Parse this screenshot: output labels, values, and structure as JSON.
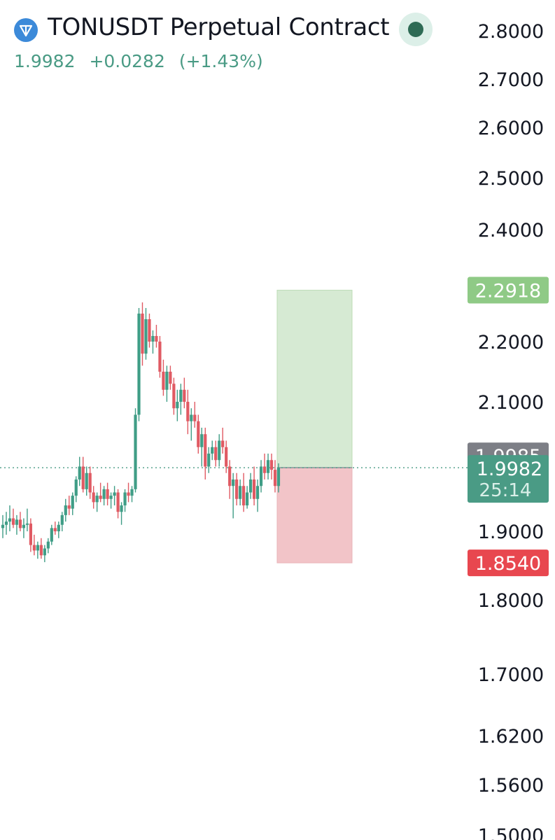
{
  "header": {
    "symbol_title": "TONUSDT Perpetual Contract",
    "last_price": "1.9982",
    "change": "+0.0282",
    "change_pct": "(+1.43%)",
    "logo_icon": "ton-diamond-logo",
    "status_icon": "market-open-dot"
  },
  "colors": {
    "up": "#26a69a",
    "down": "#ef5350",
    "up_wick": "#3f9d86",
    "down_wick": "#e05a63",
    "profit_zone": "#d6ead3",
    "loss_zone": "#f2c4c8",
    "target_badge": "#8fca86",
    "stop_badge": "#e8474f",
    "last_badge": "#4a9b85",
    "prev_badge": "#7d7f86"
  },
  "chart_data": {
    "type": "candlestick",
    "y_ticks": [
      "2.8000",
      "2.7000",
      "2.6000",
      "2.5000",
      "2.4000",
      "2.2000",
      "2.1000",
      "1.9000",
      "1.8000",
      "1.7000",
      "1.6200",
      "1.5600",
      "1.5000"
    ],
    "y_tick_values": [
      2.8,
      2.7,
      2.6,
      2.5,
      2.4,
      2.2,
      2.1,
      1.9,
      1.8,
      1.7,
      1.62,
      1.56,
      1.5
    ],
    "position": {
      "entry": 1.9982,
      "target": 2.2918,
      "stop": 1.854,
      "target_label": "2.2918",
      "stop_label": "1.8540"
    },
    "price_labels": {
      "previous": "1.9985",
      "last": "1.9982",
      "countdown": "25:14"
    },
    "candles": [
      [
        1.905,
        1.925,
        1.89,
        1.91
      ],
      [
        1.91,
        1.93,
        1.895,
        1.915
      ],
      [
        1.915,
        1.94,
        1.9,
        1.92
      ],
      [
        1.92,
        1.935,
        1.905,
        1.91
      ],
      [
        1.91,
        1.925,
        1.895,
        1.918
      ],
      [
        1.918,
        1.93,
        1.9,
        1.905
      ],
      [
        1.905,
        1.92,
        1.89,
        1.91
      ],
      [
        1.91,
        1.935,
        1.9,
        1.912
      ],
      [
        1.912,
        1.92,
        1.87,
        1.88
      ],
      [
        1.88,
        1.895,
        1.865,
        1.872
      ],
      [
        1.872,
        1.885,
        1.86,
        1.88
      ],
      [
        1.88,
        1.89,
        1.86,
        1.865
      ],
      [
        1.865,
        1.88,
        1.855,
        1.875
      ],
      [
        1.875,
        1.89,
        1.868,
        1.885
      ],
      [
        1.885,
        1.91,
        1.88,
        1.905
      ],
      [
        1.905,
        1.915,
        1.895,
        1.9
      ],
      [
        1.9,
        1.915,
        1.89,
        1.91
      ],
      [
        1.91,
        1.93,
        1.9,
        1.925
      ],
      [
        1.925,
        1.95,
        1.915,
        1.94
      ],
      [
        1.94,
        1.955,
        1.925,
        1.935
      ],
      [
        1.935,
        1.96,
        1.925,
        1.955
      ],
      [
        1.955,
        1.985,
        1.945,
        1.98
      ],
      [
        1.98,
        2.015,
        1.97,
        2.0
      ],
      [
        2.0,
        2.015,
        1.96,
        1.965
      ],
      [
        1.965,
        2.0,
        1.955,
        1.99
      ],
      [
        1.99,
        2.0,
        1.95,
        1.96
      ],
      [
        1.96,
        1.97,
        1.935,
        1.945
      ],
      [
        1.945,
        1.96,
        1.93,
        1.955
      ],
      [
        1.955,
        1.975,
        1.945,
        1.95
      ],
      [
        1.95,
        1.97,
        1.94,
        1.965
      ],
      [
        1.965,
        1.975,
        1.94,
        1.95
      ],
      [
        1.95,
        1.96,
        1.935,
        1.955
      ],
      [
        1.955,
        1.97,
        1.94,
        1.96
      ],
      [
        1.96,
        1.965,
        1.92,
        1.93
      ],
      [
        1.93,
        1.945,
        1.91,
        1.94
      ],
      [
        1.94,
        1.965,
        1.93,
        1.96
      ],
      [
        1.96,
        1.975,
        1.945,
        1.955
      ],
      [
        1.955,
        1.97,
        1.945,
        1.965
      ],
      [
        1.965,
        2.09,
        1.96,
        2.08
      ],
      [
        2.08,
        2.26,
        2.07,
        2.25
      ],
      [
        2.25,
        2.27,
        2.16,
        2.18
      ],
      [
        2.18,
        2.26,
        2.17,
        2.24
      ],
      [
        2.24,
        2.25,
        2.19,
        2.2
      ],
      [
        2.2,
        2.22,
        2.18,
        2.21
      ],
      [
        2.21,
        2.23,
        2.19,
        2.2
      ],
      [
        2.2,
        2.21,
        2.14,
        2.15
      ],
      [
        2.15,
        2.17,
        2.11,
        2.12
      ],
      [
        2.12,
        2.16,
        2.1,
        2.15
      ],
      [
        2.15,
        2.16,
        2.12,
        2.13
      ],
      [
        2.13,
        2.14,
        2.08,
        2.09
      ],
      [
        2.09,
        2.12,
        2.07,
        2.1
      ],
      [
        2.1,
        2.13,
        2.08,
        2.12
      ],
      [
        2.12,
        2.14,
        2.09,
        2.1
      ],
      [
        2.1,
        2.12,
        2.05,
        2.07
      ],
      [
        2.07,
        2.09,
        2.04,
        2.08
      ],
      [
        2.08,
        2.1,
        2.06,
        2.07
      ],
      [
        2.07,
        2.08,
        2.02,
        2.03
      ],
      [
        2.03,
        2.06,
        2.0,
        2.05
      ],
      [
        2.05,
        2.06,
        1.98,
        2.0
      ],
      [
        2.0,
        2.03,
        1.99,
        2.02
      ],
      [
        2.02,
        2.04,
        2.01,
        2.03
      ],
      [
        2.03,
        2.04,
        2.0,
        2.01
      ],
      [
        2.01,
        2.05,
        2.0,
        2.04
      ],
      [
        2.04,
        2.06,
        2.02,
        2.03
      ],
      [
        2.03,
        2.04,
        1.99,
        2.0
      ],
      [
        2.0,
        2.01,
        1.95,
        1.97
      ],
      [
        1.97,
        1.99,
        1.92,
        1.98
      ],
      [
        1.98,
        1.99,
        1.94,
        1.95
      ],
      [
        1.95,
        1.98,
        1.94,
        1.97
      ],
      [
        1.97,
        1.99,
        1.93,
        1.94
      ],
      [
        1.94,
        1.97,
        1.935,
        1.96
      ],
      [
        1.96,
        1.99,
        1.95,
        1.98
      ],
      [
        1.98,
        2.0,
        1.94,
        1.95
      ],
      [
        1.95,
        1.98,
        1.93,
        1.97
      ],
      [
        1.97,
        2.01,
        1.96,
        2.0
      ],
      [
        2.0,
        2.02,
        1.98,
        1.99
      ],
      [
        1.99,
        2.02,
        1.98,
        2.01
      ],
      [
        2.01,
        2.02,
        1.98,
        1.995
      ],
      [
        1.995,
        2.01,
        1.96,
        1.97
      ],
      [
        1.97,
        2.005,
        1.96,
        1.9982
      ]
    ]
  }
}
